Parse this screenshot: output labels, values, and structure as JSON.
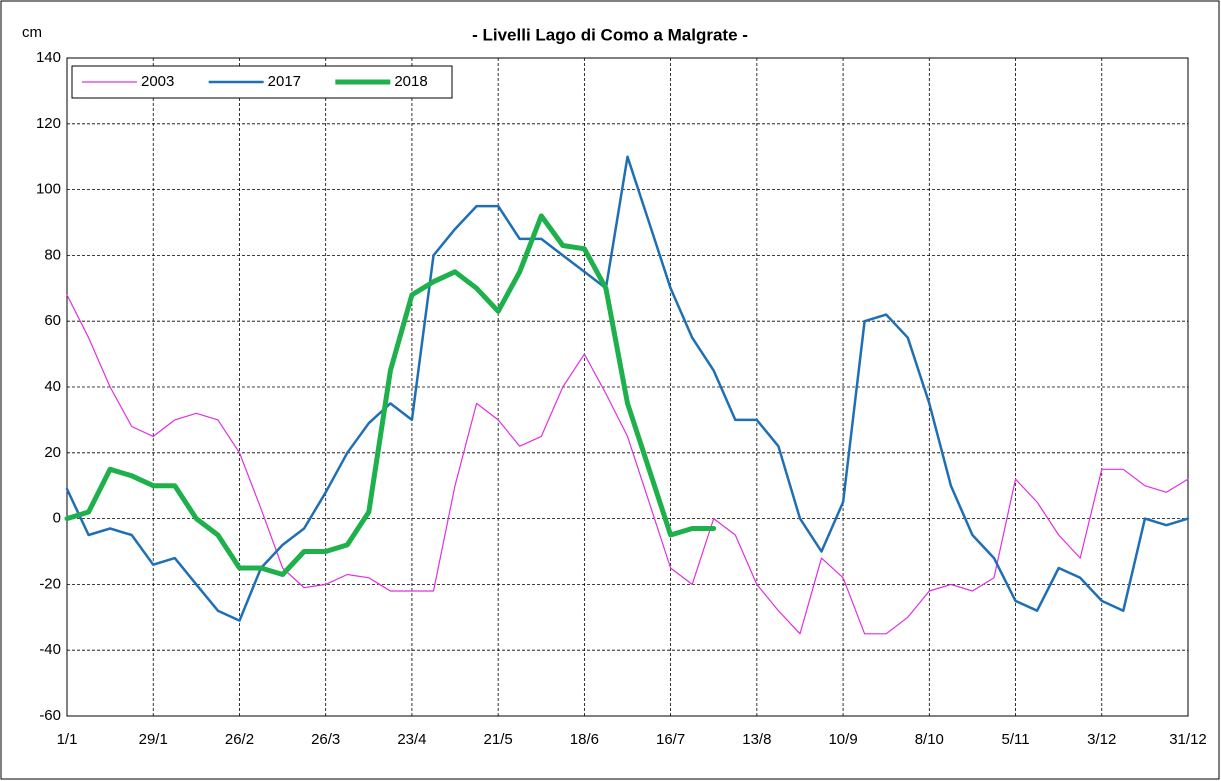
{
  "chart_data": {
    "type": "line",
    "title": "- Livelli Lago di Como a Malgrate -",
    "y_label": "cm",
    "x": [
      1,
      8,
      15,
      22,
      29,
      36,
      43,
      50,
      57,
      64,
      71,
      78,
      85,
      92,
      99,
      106,
      113,
      120,
      127,
      134,
      141,
      148,
      155,
      162,
      169,
      176,
      183,
      190,
      197,
      204,
      211,
      218,
      225,
      232,
      239,
      246,
      253,
      260,
      267,
      274,
      281,
      288,
      295,
      302,
      309,
      316,
      323,
      330,
      337,
      344,
      351,
      358,
      365
    ],
    "series": [
      {
        "name": "2003",
        "color": "#e030e0",
        "width": 1.2,
        "values": [
          68,
          55,
          40,
          28,
          25,
          30,
          32,
          30,
          20,
          3,
          -15,
          -21,
          -20,
          -17,
          -18,
          -22,
          -22,
          -22,
          10,
          35,
          30,
          22,
          25,
          40,
          50,
          38,
          25,
          5,
          -15,
          -20,
          0,
          -5,
          -20,
          -28,
          -35,
          -12,
          -18,
          -35,
          -35,
          -30,
          -22,
          -20,
          -22,
          -18,
          12,
          5,
          -5,
          -12,
          15,
          15,
          10,
          8,
          12
        ]
      },
      {
        "name": "2017",
        "color": "#1f6fb5",
        "width": 2.5,
        "values": [
          9,
          -5,
          -3,
          -5,
          -14,
          -12,
          -20,
          -28,
          -31,
          -15,
          -8,
          -3,
          8,
          20,
          29,
          35,
          30,
          80,
          88,
          95,
          95,
          85,
          85,
          80,
          75,
          70,
          110,
          90,
          70,
          55,
          45,
          30,
          30,
          22,
          0,
          -10,
          5,
          60,
          62,
          55,
          35,
          10,
          -5,
          -12,
          -25,
          -28,
          -15,
          -18,
          -25,
          -28,
          0,
          -2,
          0
        ]
      },
      {
        "name": "2018",
        "color": "#1db04b",
        "width": 5,
        "values": [
          0,
          2,
          15,
          13,
          10,
          10,
          0,
          -5,
          -15,
          -15,
          -17,
          -10,
          -10,
          -8,
          2,
          45,
          68,
          72,
          75,
          70,
          63,
          75,
          92,
          83,
          82,
          70,
          35,
          15,
          -5,
          -3,
          -3,
          null,
          null,
          null,
          null,
          null,
          null,
          null,
          null,
          null,
          null,
          null,
          null,
          null,
          null,
          null,
          null,
          null,
          null,
          null,
          null,
          null,
          null
        ]
      }
    ],
    "xlim": [
      1,
      365
    ],
    "xticks": [
      {
        "value": 1,
        "label": "1/1"
      },
      {
        "value": 29,
        "label": "29/1"
      },
      {
        "value": 57,
        "label": "26/2"
      },
      {
        "value": 85,
        "label": "26/3"
      },
      {
        "value": 113,
        "label": "23/4"
      },
      {
        "value": 141,
        "label": "21/5"
      },
      {
        "value": 169,
        "label": "18/6"
      },
      {
        "value": 197,
        "label": "16/7"
      },
      {
        "value": 225,
        "label": "13/8"
      },
      {
        "value": 253,
        "label": "10/9"
      },
      {
        "value": 281,
        "label": "8/10"
      },
      {
        "value": 309,
        "label": "5/11"
      },
      {
        "value": 337,
        "label": "3/12"
      },
      {
        "value": 365,
        "label": "31/12"
      }
    ],
    "ylim": [
      -60,
      140
    ],
    "yticks": [
      -60,
      -40,
      -20,
      0,
      20,
      40,
      60,
      80,
      100,
      120,
      140
    ],
    "grid": true,
    "legend": "upper left"
  }
}
